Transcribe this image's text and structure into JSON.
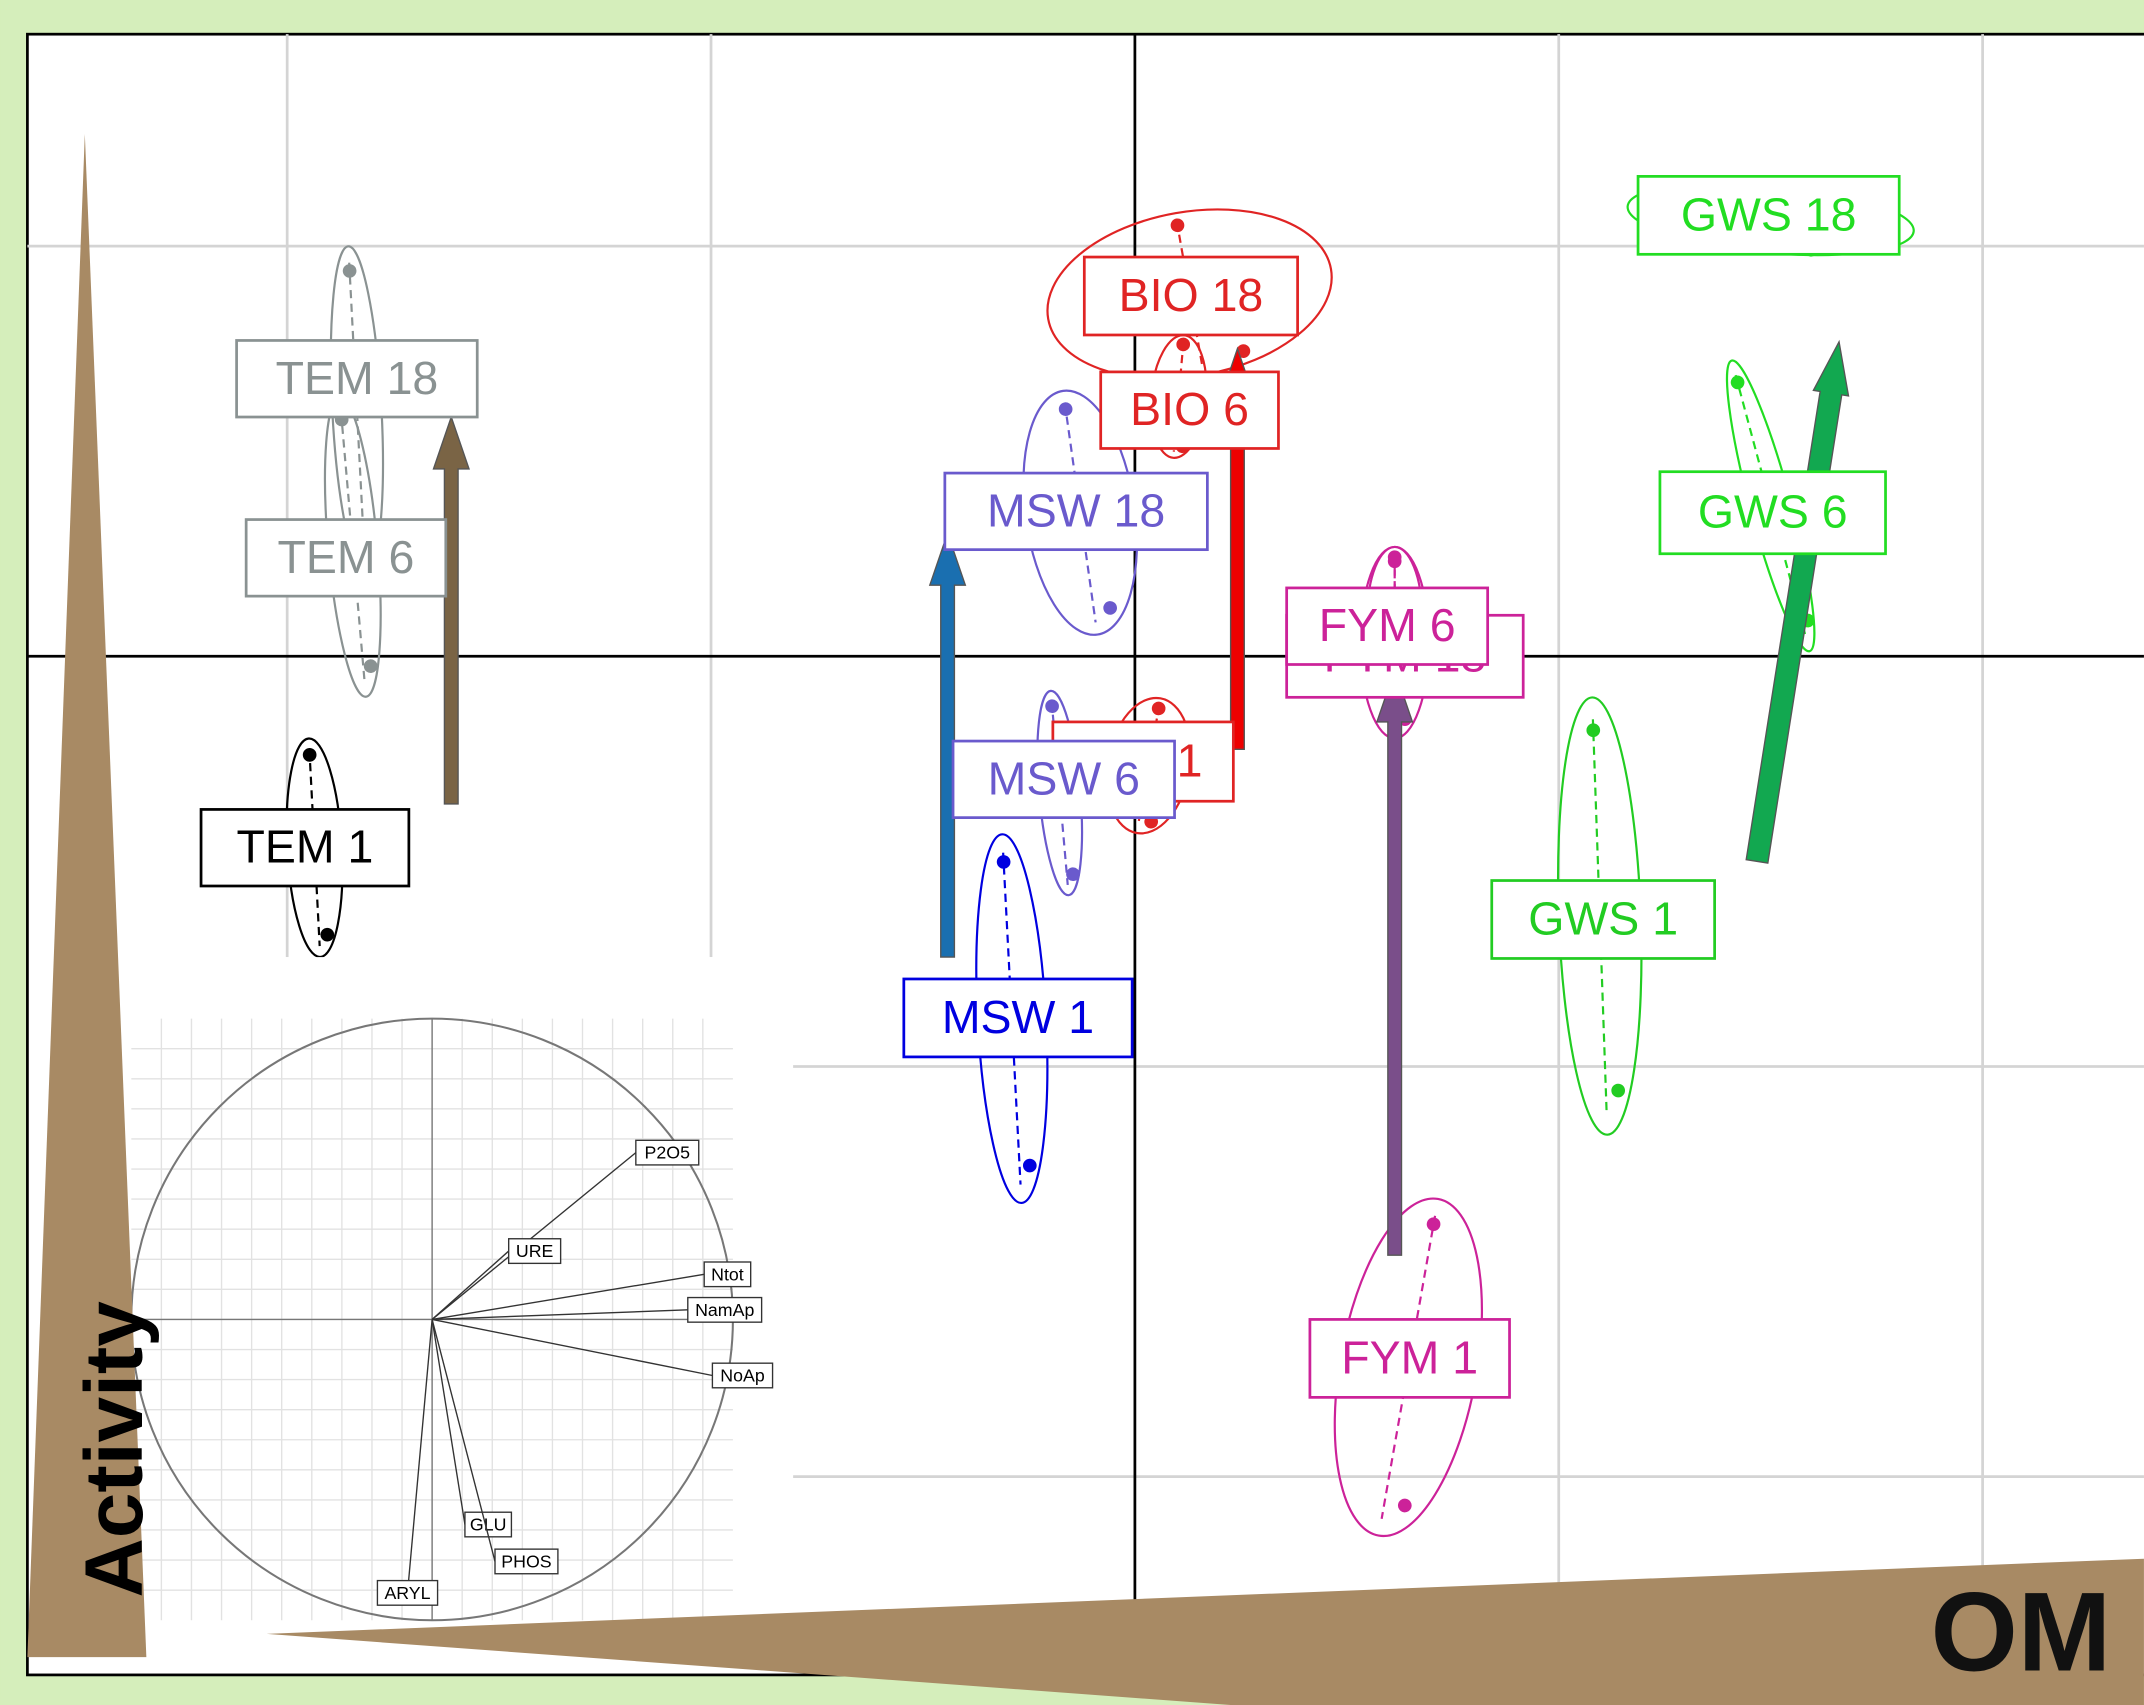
{
  "axes": {
    "y_label": "Activity",
    "x_label": "OM"
  },
  "groups": [
    {
      "label": "TEM 18",
      "color": "#8a9292"
    },
    {
      "label": "TEM 6",
      "color": "#8a9292"
    },
    {
      "label": "TEM 1",
      "color": "#000000"
    },
    {
      "label": "BIO 1",
      "color": "#e02424"
    },
    {
      "label": "BIO 18",
      "color": "#e02424"
    },
    {
      "label": "BIO 6",
      "color": "#e02424"
    },
    {
      "label": "MSW 18",
      "color": "#6a5acd"
    },
    {
      "label": "MSW 6",
      "color": "#6a5acd"
    },
    {
      "label": "MSW 1",
      "color": "#0000e0"
    },
    {
      "label": "FYM 18",
      "color": "#cc2299"
    },
    {
      "label": "FYM 6",
      "color": "#cc2299"
    },
    {
      "label": "FYM 1",
      "color": "#cc2299"
    },
    {
      "label": "GWS 18",
      "color": "#22dd22"
    },
    {
      "label": "GWS 6",
      "color": "#22dd22"
    },
    {
      "label": "GWS 1",
      "color": "#22cc22"
    }
  ],
  "variables": [
    {
      "label": "P2O5"
    },
    {
      "label": "URE"
    },
    {
      "label": "Ntot"
    },
    {
      "label": "NamAp"
    },
    {
      "label": "NoAp"
    },
    {
      "label": "GLU"
    },
    {
      "label": "PHOS"
    },
    {
      "label": "ARYL"
    }
  ]
}
